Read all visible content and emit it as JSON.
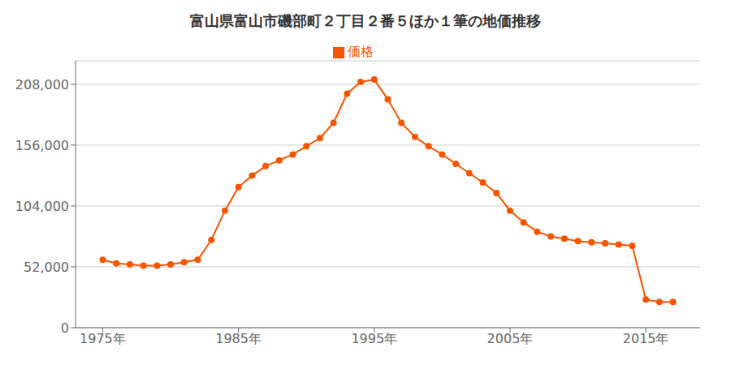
{
  "chart_data": {
    "type": "line",
    "title": "富山県富山市磯部町２丁目２番５ほか１筆の地価推移",
    "x": [
      1975,
      1976,
      1977,
      1978,
      1979,
      1980,
      1981,
      1982,
      1983,
      1984,
      1985,
      1986,
      1987,
      1988,
      1989,
      1990,
      1991,
      1992,
      1993,
      1994,
      1995,
      1996,
      1997,
      1998,
      1999,
      2000,
      2001,
      2002,
      2003,
      2004,
      2005,
      2006,
      2007,
      2008,
      2009,
      2010,
      2011,
      2012,
      2013,
      2014,
      2015,
      2016,
      2017
    ],
    "series": [
      {
        "name": "価格",
        "color": "#f55500",
        "marker": "circle",
        "values": [
          58000,
          55000,
          54000,
          53000,
          53000,
          54000,
          56000,
          58000,
          75000,
          100000,
          120000,
          130000,
          138000,
          143000,
          148000,
          155000,
          162000,
          175000,
          200000,
          210000,
          212000,
          195000,
          175000,
          163000,
          155000,
          148000,
          140000,
          132000,
          124000,
          115000,
          100000,
          90000,
          82000,
          78000,
          76000,
          74000,
          73000,
          72000,
          71000,
          70000,
          24000,
          22000,
          22000
        ]
      }
    ],
    "xlim": [
      1973,
      2019
    ],
    "xticks": [
      {
        "value": 1975,
        "label": "1975年"
      },
      {
        "value": 1985,
        "label": "1985年"
      },
      {
        "value": 1995,
        "label": "1995年"
      },
      {
        "value": 2005,
        "label": "2005年"
      },
      {
        "value": 2015,
        "label": "2015年"
      }
    ],
    "ylim": [
      0,
      228000
    ],
    "yticks": [
      0,
      {
        "value": 52000,
        "label": "52,000"
      },
      {
        "value": 104000,
        "label": "104,000"
      },
      {
        "value": 156000,
        "label": "156,000"
      },
      {
        "value": 208000,
        "label": "208,000"
      }
    ],
    "grid": true,
    "legend": "top"
  }
}
